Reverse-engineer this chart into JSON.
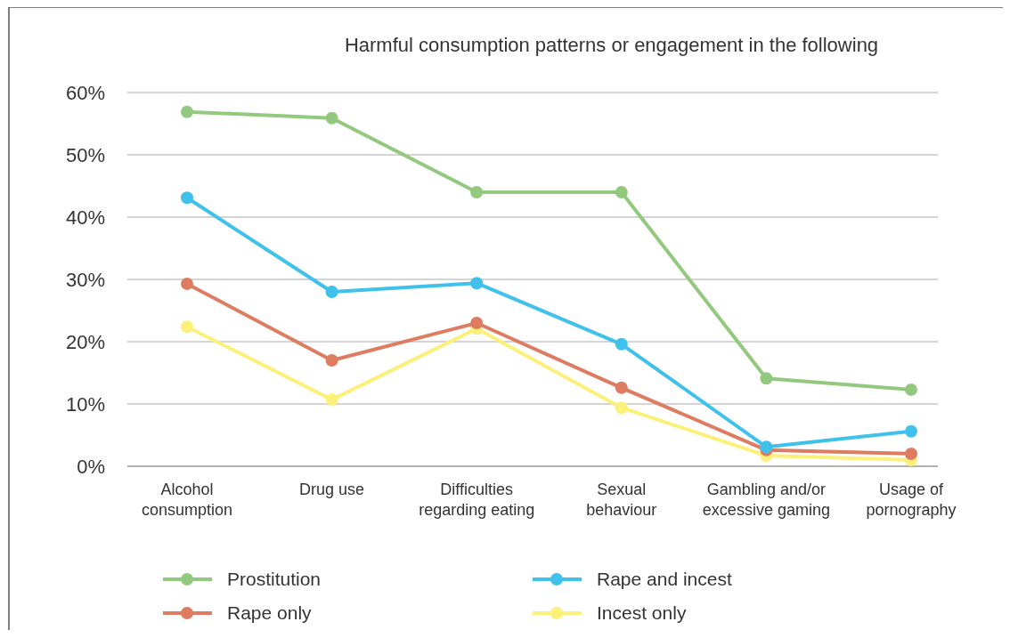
{
  "chart_data": {
    "type": "line",
    "title": "Harmful consumption patterns or engagement in the following",
    "categories": [
      "Alcohol consumption",
      "Drug use",
      "Difficulties regarding eating",
      "Sexual behaviour",
      "Gambling and/or excessive gaming",
      "Usage of pornography"
    ],
    "series": [
      {
        "name": "Prostitution",
        "color": "#93c97f",
        "values": [
          56.9,
          55.9,
          44,
          44,
          14.1,
          12.3
        ]
      },
      {
        "name": "Rape and incest",
        "color": "#3fc1ec",
        "values": [
          43.1,
          28,
          29.4,
          19.6,
          3.1,
          5.6
        ]
      },
      {
        "name": "Rape only",
        "color": "#de7c62",
        "values": [
          29.3,
          17,
          23,
          12.6,
          2.6,
          2
        ]
      },
      {
        "name": "Incest only",
        "color": "#fbf079",
        "values": [
          22.4,
          10.7,
          22.1,
          9.4,
          1.7,
          1
        ]
      }
    ],
    "ylim": [
      0,
      60
    ],
    "yticks": [
      {
        "value": 0,
        "label": "0%"
      },
      {
        "value": 10,
        "label": "10%"
      },
      {
        "value": 20,
        "label": "20%"
      },
      {
        "value": 30,
        "label": "30%"
      },
      {
        "value": 40,
        "label": "40%"
      },
      {
        "value": 50,
        "label": "50%"
      },
      {
        "value": 60,
        "label": "60%"
      }
    ],
    "grid": "y",
    "legend": "bottom",
    "marker": "circle",
    "line_style": "solid"
  }
}
